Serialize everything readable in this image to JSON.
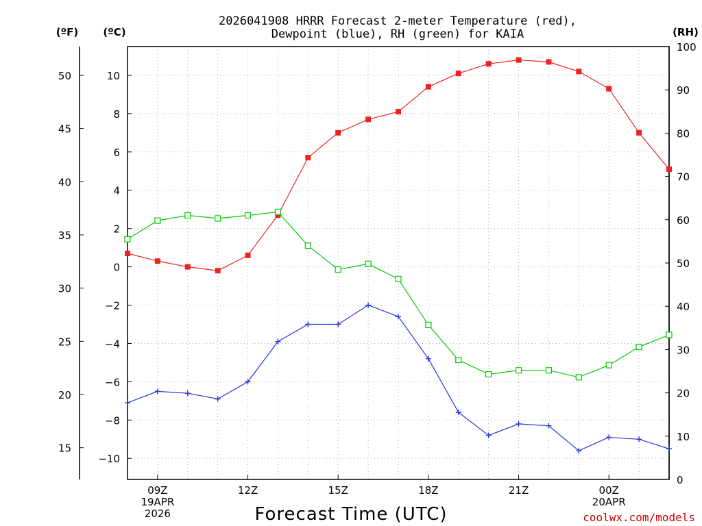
{
  "title_line1": "2026041908 HRRR Forecast 2-meter Temperature (red),",
  "title_line2": "Dewpoint (blue), RH (green) for KAIA",
  "unit_f": "(ºF)",
  "unit_c": "(ºC)",
  "unit_rh": "(RH)",
  "xlabel": "Forecast Time (UTC)",
  "credit": "coolwx.com/models",
  "colors": {
    "temperature": "#ee2222",
    "dewpoint": "#2233dd",
    "rh": "#00cc00"
  },
  "chart_data": {
    "type": "line",
    "title": "2026041908 HRRR Forecast 2-meter Temperature (red), Dewpoint (blue), RH (green) for KAIA",
    "xlabel": "Forecast Time (UTC)",
    "x_hours": [
      8,
      9,
      10,
      11,
      12,
      13,
      14,
      15,
      16,
      17,
      18,
      19,
      20,
      21,
      22,
      23,
      24,
      25,
      26
    ],
    "x_ticks": [
      {
        "hour": 9,
        "lines": [
          "09Z",
          "19APR",
          "2026"
        ]
      },
      {
        "hour": 12,
        "lines": [
          "12Z"
        ]
      },
      {
        "hour": 15,
        "lines": [
          "15Z"
        ]
      },
      {
        "hour": 18,
        "lines": [
          "18Z"
        ]
      },
      {
        "hour": 21,
        "lines": [
          "21Z"
        ]
      },
      {
        "hour": 24,
        "lines": [
          "00Z",
          "20APR"
        ]
      }
    ],
    "xlim": [
      8,
      26
    ],
    "celsius_axis": {
      "ylim": [
        -11.1,
        11.5
      ],
      "ticks": [
        -10,
        -8,
        -6,
        -4,
        -2,
        0,
        2,
        4,
        6,
        8,
        10
      ]
    },
    "fahrenheit_axis": {
      "ticks": [
        15,
        20,
        25,
        30,
        35,
        40,
        45,
        50
      ]
    },
    "rh_axis": {
      "ylim": [
        0,
        100
      ],
      "ticks": [
        0,
        10,
        20,
        30,
        40,
        50,
        60,
        70,
        80,
        90,
        100
      ]
    },
    "series": [
      {
        "name": "2-meter Temperature",
        "axis": "celsius",
        "marker": "filled-square",
        "values": [
          0.7,
          0.3,
          0.0,
          -0.2,
          0.6,
          2.7,
          5.7,
          7.0,
          7.7,
          8.1,
          9.4,
          10.1,
          10.6,
          10.8,
          10.7,
          10.2,
          9.3,
          7.0,
          5.1
        ]
      },
      {
        "name": "Dewpoint",
        "axis": "celsius",
        "marker": "plus",
        "values": [
          -7.1,
          -6.5,
          -6.6,
          -6.9,
          -6.0,
          -3.9,
          -3.0,
          -3.0,
          -2.0,
          -2.6,
          -4.8,
          -7.6,
          -8.8,
          -8.2,
          -8.3,
          -9.6,
          -8.9,
          -9.0,
          -9.5
        ]
      },
      {
        "name": "Relative Humidity",
        "axis": "rh",
        "marker": "open-square",
        "values": [
          55.5,
          59.8,
          61.0,
          60.3,
          61.0,
          61.8,
          54.0,
          48.5,
          49.8,
          46.3,
          35.7,
          27.6,
          24.3,
          25.2,
          25.2,
          23.6,
          26.4,
          30.6,
          33.4
        ]
      }
    ]
  }
}
